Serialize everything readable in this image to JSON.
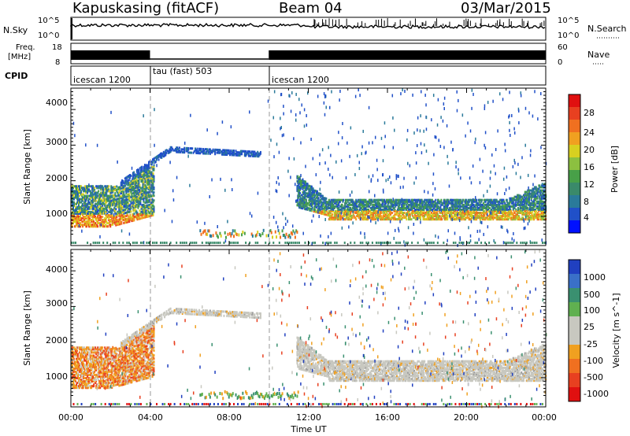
{
  "header": {
    "station": "Kapuskasing (fitACF)",
    "beam": "Beam 04",
    "date": "03/Mar/2015"
  },
  "strips": {
    "nsky_label": "N.Sky",
    "nsky_ticks": [
      "10^5",
      "10^0"
    ],
    "nsearch_label": "N.Search",
    "nsearch_ticks": [
      "10^5",
      "10^0"
    ],
    "freq_label": "Freq.",
    "freq_unit": "[MHz]",
    "freq_ticks": [
      "18",
      "8"
    ],
    "nave_label": "Nave",
    "nave_ticks": [
      "60",
      "0"
    ],
    "cpid_label": "CPID",
    "cpid_segments": [
      {
        "name": "icescan 1200",
        "start": "00:00",
        "end": "04:00"
      },
      {
        "name": "tau (fast) 503",
        "start": "04:00",
        "end": "10:00"
      },
      {
        "name": "icescan 1200",
        "start": "10:00",
        "end": "24:00"
      }
    ]
  },
  "chart_data": [
    {
      "type": "heatmap",
      "panel": "power",
      "ylabel": "Slant Range [km]",
      "xlabel": "Time UT",
      "x_ticks": [
        "00:00",
        "04:00",
        "08:00",
        "12:00",
        "16:00",
        "20:00",
        "00:00"
      ],
      "y_ticks": [
        "1000",
        "2000",
        "3000",
        "4000"
      ],
      "xlim_hours": [
        0,
        24
      ],
      "ylim_km": [
        180,
        4600
      ],
      "colorbar": {
        "label": "Power [dB]",
        "ticks": [
          "4",
          "8",
          "12",
          "16",
          "20",
          "24",
          "28"
        ],
        "range": [
          0,
          30
        ],
        "colors": [
          "#0010ff",
          "#2050c8",
          "#2a7a9a",
          "#3a8a6a",
          "#48a048",
          "#8cc040",
          "#d8d020",
          "#f0a020",
          "#f07020",
          "#e84020",
          "#e01010"
        ]
      },
      "features": [
        {
          "desc": "band",
          "t": [
            0,
            4
          ],
          "range_km": [
            800,
            1900
          ],
          "power_db": 12
        },
        {
          "desc": "arc",
          "t": [
            2.5,
            9.5
          ],
          "range_km": [
            2800,
            2800
          ],
          "power_db": 6
        },
        {
          "desc": "band",
          "t": [
            11.5,
            24
          ],
          "range_km": [
            1000,
            1400
          ],
          "power_db": 10
        }
      ]
    },
    {
      "type": "heatmap",
      "panel": "velocity",
      "ylabel": "Slant Range [km]",
      "xlabel": "Time UT",
      "x_ticks": [
        "00:00",
        "04:00",
        "08:00",
        "12:00",
        "16:00",
        "20:00",
        "00:00"
      ],
      "y_ticks": [
        "1000",
        "2000",
        "3000",
        "4000"
      ],
      "xlim_hours": [
        0,
        24
      ],
      "ylim_km": [
        180,
        4600
      ],
      "colorbar": {
        "label": "Velocity [m s^-1]",
        "ticks": [
          "1000",
          "500",
          "100",
          "25",
          "-25",
          "-100",
          "-500",
          "-1000"
        ],
        "colors": [
          "#2040c0",
          "#3a70c8",
          "#3a9070",
          "#60b050",
          "#c8c8c0",
          "#c8c8c0",
          "#f0a020",
          "#f07020",
          "#e84020",
          "#e01010"
        ]
      },
      "features": [
        {
          "desc": "band",
          "t": [
            0,
            4
          ],
          "range_km": [
            800,
            1900
          ],
          "velocity": -200
        },
        {
          "desc": "arc",
          "t": [
            2.5,
            9.5
          ],
          "range_km": [
            2800,
            2800
          ],
          "velocity": 0
        },
        {
          "desc": "band",
          "t": [
            11.5,
            24
          ],
          "range_km": [
            1000,
            1400
          ],
          "velocity": 0
        }
      ]
    }
  ]
}
